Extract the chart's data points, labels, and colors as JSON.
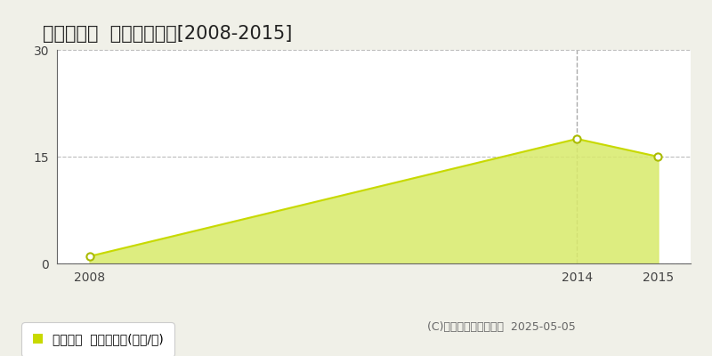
{
  "title": "新城市川路  土地価格推移[2008-2015]",
  "years": [
    2008,
    2014,
    2015
  ],
  "values": [
    1,
    17.5,
    15
  ],
  "line_color": "#c8d900",
  "fill_color": "#d8ea6a",
  "fill_alpha": 0.85,
  "marker_color": "white",
  "marker_edgecolor": "#aabb00",
  "bg_color": "#f0f0e8",
  "plot_bg_color": "#ffffff",
  "xlim": [
    2007.6,
    2015.4
  ],
  "ylim": [
    0,
    30
  ],
  "yticks": [
    0,
    15,
    30
  ],
  "xticks": [
    2008,
    2014,
    2015
  ],
  "vline_x": 2014,
  "vline_color": "#aaaaaa",
  "grid_color": "#bbbbbb",
  "legend_label": "土地価格  平均坪単価(万円/坪)",
  "copyright": "(C)土地価格ドットコム  2025-05-05",
  "title_fontsize": 15,
  "tick_fontsize": 10,
  "legend_fontsize": 10,
  "copyright_fontsize": 9
}
